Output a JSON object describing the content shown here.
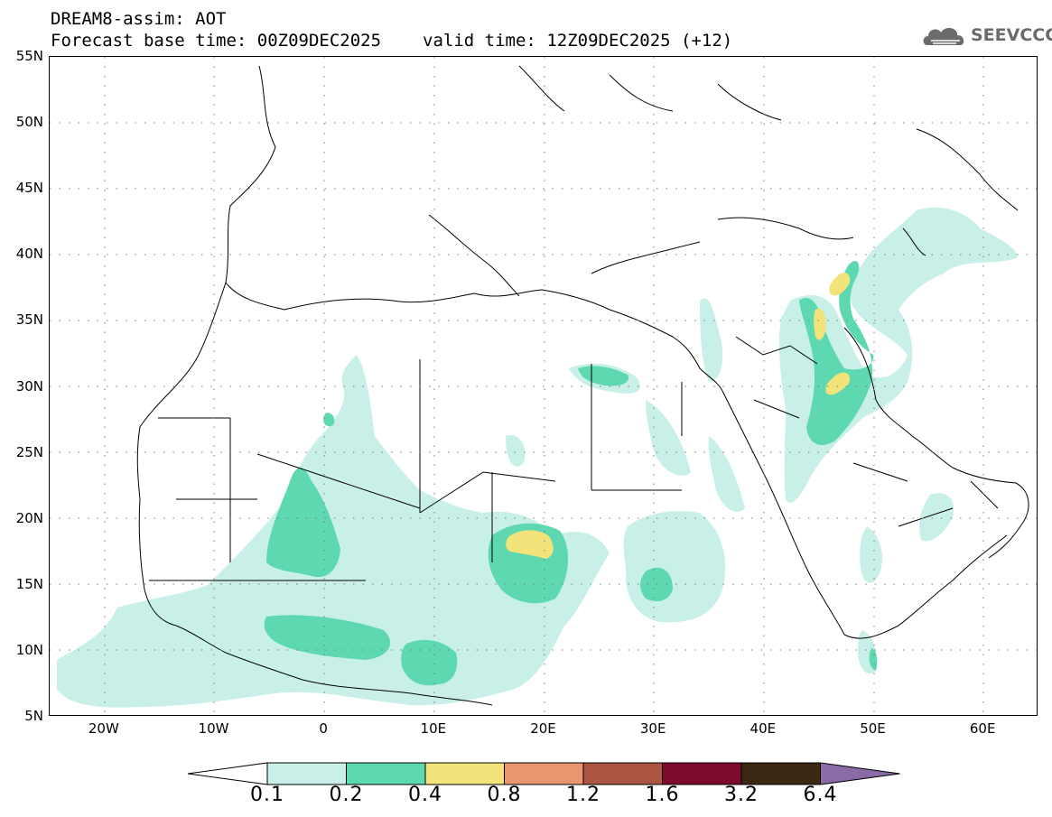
{
  "header": {
    "title": "DREAM8-assim: AOT",
    "base_time": "Forecast base time: 00Z09DEC2025",
    "valid_time": "valid time: 12Z09DEC2025 (+12)"
  },
  "logo": {
    "text": "SEEVCCC",
    "icon": "cloud-logo-icon"
  },
  "map": {
    "lat_labels": [
      "55N",
      "50N",
      "45N",
      "40N",
      "35N",
      "30N",
      "25N",
      "20N",
      "15N",
      "10N",
      "5N"
    ],
    "lon_labels": [
      "20W",
      "10W",
      "0",
      "10E",
      "20E",
      "30E",
      "40E",
      "50E",
      "60E"
    ],
    "lat_range": [
      5,
      55
    ],
    "lon_range": [
      -25,
      65
    ],
    "grid": "dotted"
  },
  "colorbar": {
    "labels": [
      "0.1",
      "0.2",
      "0.4",
      "0.8",
      "1.2",
      "1.6",
      "3.2",
      "6.4"
    ],
    "colors": [
      "#ffffff",
      "#c8f0e8",
      "#5ed8b0",
      "#f2e47a",
      "#e99670",
      "#ad5543",
      "#7e0a2e",
      "#3a2812",
      "#8a6ba8"
    ]
  },
  "fill_colors": {
    "low": "#c8f0e8",
    "mid": "#5ed8b0",
    "high": "#f2e47a"
  }
}
